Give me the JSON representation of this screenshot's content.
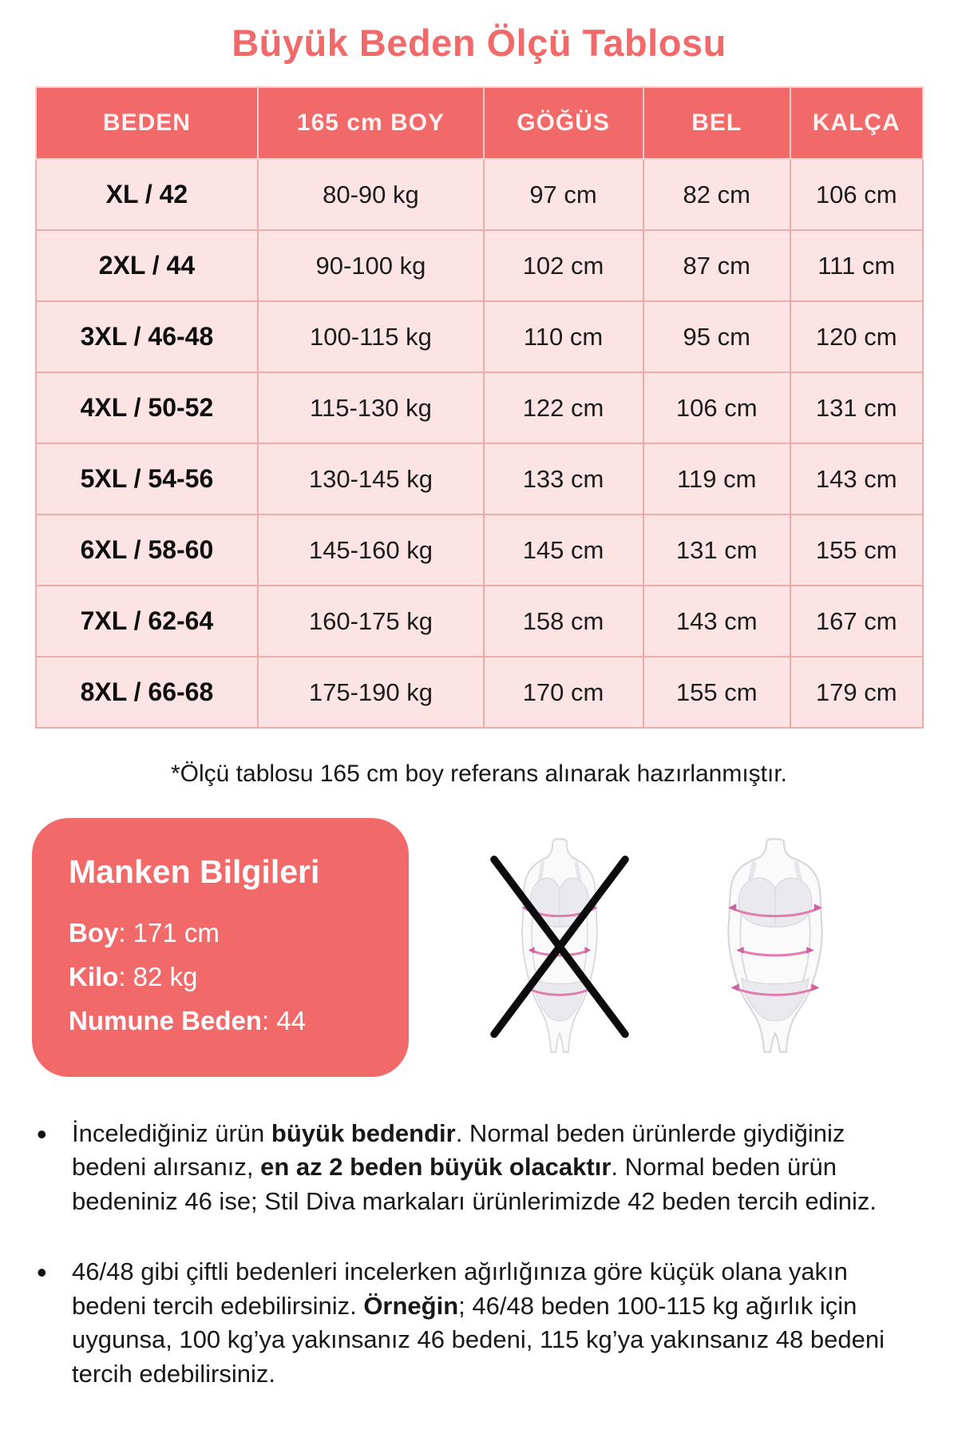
{
  "page": {
    "title": "Büyük Beden Ölçü Tablosu",
    "footnote": "*Ölçü tablosu 165 cm boy referans alınarak hazırlanmıştır."
  },
  "size_table": {
    "columns": [
      "BEDEN",
      "165 cm BOY",
      "GÖĞÜS",
      "BEL",
      "KALÇA"
    ],
    "rows": [
      [
        "XL / 42",
        "80-90 kg",
        "97 cm",
        "82 cm",
        "106 cm"
      ],
      [
        "2XL / 44",
        "90-100 kg",
        "102 cm",
        "87 cm",
        "111 cm"
      ],
      [
        "3XL / 46-48",
        "100-115 kg",
        "110 cm",
        "95 cm",
        "120 cm"
      ],
      [
        "4XL / 50-52",
        "115-130 kg",
        "122 cm",
        "106 cm",
        "131 cm"
      ],
      [
        "5XL / 54-56",
        "130-145 kg",
        "133 cm",
        "119 cm",
        "143 cm"
      ],
      [
        "6XL / 58-60",
        "145-160 kg",
        "145 cm",
        "131 cm",
        "155 cm"
      ],
      [
        "7XL / 62-64",
        "160-175 kg",
        "158 cm",
        "143 cm",
        "167 cm"
      ],
      [
        "8XL / 66-68",
        "175-190 kg",
        "170 cm",
        "155 cm",
        "179 cm"
      ]
    ]
  },
  "model_info": {
    "title": "Manken Bilgileri",
    "fields": [
      {
        "label": "Boy",
        "value": "171 cm"
      },
      {
        "label": "Kilo",
        "value": "82 kg"
      },
      {
        "label": "Numune Beden",
        "value": "44"
      }
    ]
  },
  "figures": {
    "wrong": "slim-body-crossed-out",
    "correct": "plus-size-body-with-measure-lines"
  },
  "notes": [
    {
      "segments": [
        {
          "text": "İncelediğiniz ürün ",
          "bold": false
        },
        {
          "text": "büyük bedendir",
          "bold": true
        },
        {
          "text": ". Normal beden ürünlerde giydiğiniz bedeni alırsanız, ",
          "bold": false
        },
        {
          "text": "en az 2 beden büyük olacaktır",
          "bold": true
        },
        {
          "text": ". Normal beden ürün bedeniniz 46 ise; Stil Diva markaları ürünlerimizde 42 beden tercih ediniz.",
          "bold": false
        }
      ]
    },
    {
      "segments": [
        {
          "text": "46/48 gibi çiftli bedenleri incelerken ağırlığınıza göre küçük olana yakın bedeni tercih edebilirsiniz. ",
          "bold": false
        },
        {
          "text": "Örneğin",
          "bold": true
        },
        {
          "text": "; 46/48 beden 100-115 kg ağırlık için uygunsa, 100 kg’ya yakınsanız 46 bedeni, 115 kg’ya yakınsanız 48 bedeni tercih edebilirsiniz.",
          "bold": false
        }
      ]
    }
  ],
  "colors": {
    "accent": "#F26969",
    "row_background": "#FCE4E4",
    "cell_border": "#EDABAB",
    "text": "#1B1B1B",
    "measure_line": "#E27BAE"
  }
}
